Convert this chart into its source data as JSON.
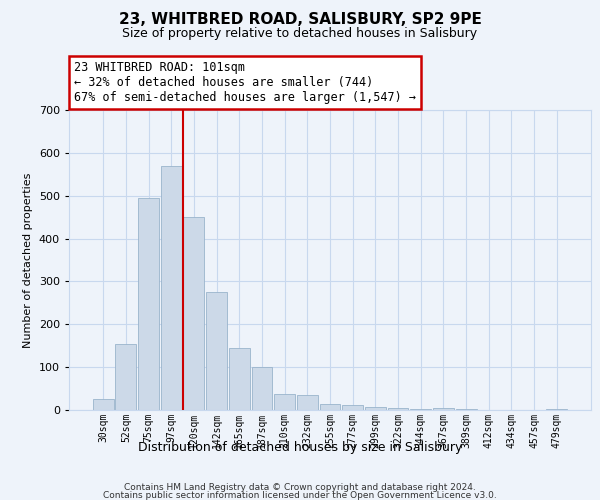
{
  "title": "23, WHITBRED ROAD, SALISBURY, SP2 9PE",
  "subtitle": "Size of property relative to detached houses in Salisbury",
  "xlabel": "Distribution of detached houses by size in Salisbury",
  "ylabel": "Number of detached properties",
  "bar_labels": [
    "30sqm",
    "52sqm",
    "75sqm",
    "97sqm",
    "120sqm",
    "142sqm",
    "165sqm",
    "187sqm",
    "210sqm",
    "232sqm",
    "255sqm",
    "277sqm",
    "299sqm",
    "322sqm",
    "344sqm",
    "367sqm",
    "389sqm",
    "412sqm",
    "434sqm",
    "457sqm",
    "479sqm"
  ],
  "bar_heights": [
    25,
    155,
    495,
    570,
    450,
    275,
    145,
    100,
    37,
    35,
    15,
    12,
    8,
    5,
    3,
    5,
    2,
    1,
    1,
    0,
    3
  ],
  "bar_color": "#ccd9e8",
  "bar_edge_color": "#9ab4cc",
  "vline_color": "#cc0000",
  "vline_bar_index": 4,
  "ylim": [
    0,
    700
  ],
  "yticks": [
    0,
    100,
    200,
    300,
    400,
    500,
    600,
    700
  ],
  "annotation_line1": "23 WHITBRED ROAD: 101sqm",
  "annotation_line2": "← 32% of detached houses are smaller (744)",
  "annotation_line3": "67% of semi-detached houses are larger (1,547) →",
  "footnote1": "Contains HM Land Registry data © Crown copyright and database right 2024.",
  "footnote2": "Contains public sector information licensed under the Open Government Licence v3.0.",
  "background_color": "#eef3fa",
  "grid_color": "#c8d8ee",
  "plot_bg_color": "#eef3fa"
}
